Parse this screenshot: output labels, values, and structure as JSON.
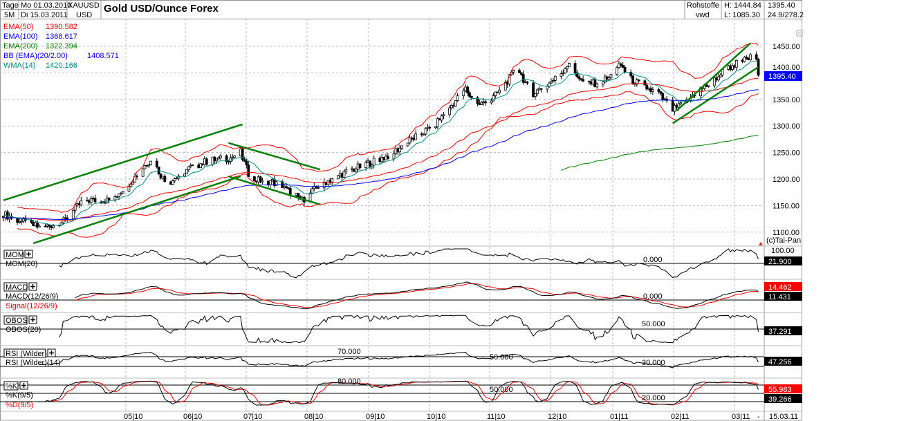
{
  "header": {
    "period_label": "Tage",
    "range_label": "5M",
    "start_date": "Mo 01.03.2010",
    "end_date": "Di 15.03.2011",
    "symbol": "XAUUSD",
    "currency": "USD",
    "title": "Gold USD/Ounce  Forex",
    "category": "Rohstoffe",
    "source": "vwd",
    "high": "H: 1444.84",
    "low": "L: 1085.30",
    "last": "1395.40",
    "range_info": "24.9/278.2"
  },
  "legend": [
    {
      "label": "EMA(50)",
      "value": "1390.582",
      "color": "#ff0000"
    },
    {
      "label": "EMA(100)",
      "value": "1368.617",
      "color": "#0000ff"
    },
    {
      "label": "EMA(200)",
      "value": "1322.394",
      "color": "#008000"
    },
    {
      "label": "BB (EMA)(20/2.00)",
      "value": "1408.571",
      "color": "#0000ff"
    },
    {
      "label": "WMA(14)",
      "value": "1420.166",
      "color": "#008b8b"
    }
  ],
  "copyright": "(c)Tai-Pan",
  "current_price_label": "1395.40",
  "x_labels": [
    "05|10",
    "06|10",
    "07|10",
    "08|10",
    "09|10",
    "10|10",
    "11|10",
    "12|10",
    "01|11",
    "02|11",
    "03|11",
    "-"
  ],
  "x_end_label": "15.03.11",
  "panels": {
    "mom": {
      "name": "MOM",
      "sub": "MOM(20)",
      "level": "0.000",
      "top": "100.00",
      "value": "21.900"
    },
    "macd": {
      "name": "MACD",
      "sub": "MACD(12/26/9)",
      "sub2": "Signal(12/26/9)",
      "level": "0.000",
      "signal_value": "14.462",
      "value": "11.431"
    },
    "obos": {
      "name": "OBOS",
      "sub": "OBOS(20)",
      "level": "50.000",
      "value": "37.291"
    },
    "rsi": {
      "name": "RSI (Wilder)",
      "sub": "RSI (Wilder)(14)",
      "levels": [
        "70.000",
        "50.000",
        "30.000"
      ],
      "value": "47.256"
    },
    "stoch": {
      "name": "%K",
      "sub": "%K(9/5)",
      "sub2": "%D(9/5)",
      "levels": [
        "80.000",
        "50.000",
        "20.000"
      ],
      "k_value": "55.983",
      "d_value": "39.266"
    }
  },
  "chart_data": {
    "type": "candlestick",
    "title": "Gold USD/Ounce  Forex",
    "y_ticks": [
      1100,
      1150,
      1200,
      1250,
      1300,
      1350,
      1400,
      1450
    ],
    "ylim": [
      1070,
      1480
    ],
    "grid": true,
    "close_anchors": [
      [
        "2010-03-01",
        1134
      ],
      [
        "2010-03-10",
        1120
      ],
      [
        "2010-03-20",
        1108
      ],
      [
        "2010-03-31",
        1120
      ],
      [
        "2010-04-10",
        1160
      ],
      [
        "2010-04-24",
        1160
      ],
      [
        "2010-05-05",
        1200
      ],
      [
        "2010-05-14",
        1238
      ],
      [
        "2010-05-22",
        1190
      ],
      [
        "2010-06-02",
        1220
      ],
      [
        "2010-06-12",
        1235
      ],
      [
        "2010-06-23",
        1240
      ],
      [
        "2010-06-28",
        1250
      ],
      [
        "2010-07-03",
        1200
      ],
      [
        "2010-07-14",
        1195
      ],
      [
        "2010-07-21",
        1180
      ],
      [
        "2010-07-29",
        1160
      ],
      [
        "2010-08-07",
        1190
      ],
      [
        "2010-08-18",
        1210
      ],
      [
        "2010-08-28",
        1225
      ],
      [
        "2010-09-11",
        1245
      ],
      [
        "2010-09-22",
        1275
      ],
      [
        "2010-10-03",
        1300
      ],
      [
        "2010-10-10",
        1330
      ],
      [
        "2010-10-19",
        1370
      ],
      [
        "2010-10-24",
        1340
      ],
      [
        "2010-10-31",
        1345
      ],
      [
        "2010-11-07",
        1375
      ],
      [
        "2010-11-14",
        1410
      ],
      [
        "2010-11-21",
        1360
      ],
      [
        "2010-11-28",
        1375
      ],
      [
        "2010-12-05",
        1395
      ],
      [
        "2010-12-10",
        1420
      ],
      [
        "2010-12-16",
        1385
      ],
      [
        "2010-12-23",
        1380
      ],
      [
        "2010-12-30",
        1390
      ],
      [
        "2011-01-05",
        1415
      ],
      [
        "2011-01-09",
        1390
      ],
      [
        "2011-01-16",
        1375
      ],
      [
        "2011-01-24",
        1360
      ],
      [
        "2011-01-31",
        1330
      ],
      [
        "2011-02-07",
        1345
      ],
      [
        "2011-02-12",
        1365
      ],
      [
        "2011-02-19",
        1380
      ],
      [
        "2011-02-26",
        1405
      ],
      [
        "2011-03-05",
        1420
      ],
      [
        "2011-03-12",
        1430
      ],
      [
        "2011-03-14",
        1420
      ],
      [
        "2011-03-15",
        1395.4
      ]
    ],
    "trendlines": [
      [
        [
          "2010-03-01",
          1160
        ],
        [
          "2010-06-29",
          1303
        ]
      ],
      [
        [
          "2010-03-16",
          1079
        ],
        [
          "2010-06-28",
          1205
        ]
      ],
      [
        [
          "2010-06-22",
          1268
        ],
        [
          "2010-08-07",
          1218
        ]
      ],
      [
        [
          "2010-06-22",
          1205
        ],
        [
          "2010-08-07",
          1152
        ]
      ],
      [
        [
          "2011-02-02",
          1329
        ],
        [
          "2011-03-11",
          1456
        ]
      ],
      [
        [
          "2011-01-31",
          1305
        ],
        [
          "2011-03-15",
          1411
        ]
      ]
    ],
    "trendline_color": "#008000"
  }
}
